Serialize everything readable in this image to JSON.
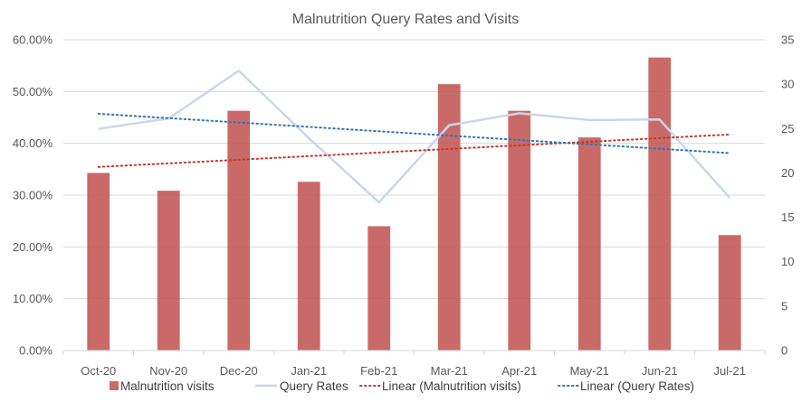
{
  "chart_data": {
    "type": "bar",
    "title": "Malnutrition Query Rates and Visits",
    "categories": [
      "Oct-20",
      "Nov-20",
      "Dec-20",
      "Jan-21",
      "Feb-21",
      "Mar-21",
      "Apr-21",
      "May-21",
      "Jun-21",
      "Jul-21"
    ],
    "series": [
      {
        "name": "Malnutrition visits",
        "type": "bar",
        "axis": "right",
        "values": [
          20,
          18,
          27,
          19,
          14,
          30,
          27,
          24,
          33,
          13
        ]
      },
      {
        "name": "Query Rates",
        "type": "line",
        "axis": "left",
        "values": [
          0.428,
          0.448,
          0.54,
          0.41,
          0.286,
          0.435,
          0.458,
          0.445,
          0.446,
          0.295
        ]
      },
      {
        "name": "Linear (Malnutrition visits)",
        "type": "trendline",
        "of": "Malnutrition visits",
        "style": "dotted"
      },
      {
        "name": "Linear (Query Rates)",
        "type": "trendline",
        "of": "Query Rates",
        "style": "dotted"
      }
    ],
    "y_left": {
      "min": 0,
      "max": 0.6,
      "step": 0.1,
      "format": "percent"
    },
    "y_right": {
      "min": 0,
      "max": 35,
      "step": 5
    },
    "y_left_ticks": [
      "0.00%",
      "10.00%",
      "20.00%",
      "30.00%",
      "40.00%",
      "50.00%",
      "60.00%"
    ],
    "y_right_ticks": [
      "0",
      "5",
      "10",
      "15",
      "20",
      "25",
      "30",
      "35"
    ],
    "legend_position": "bottom",
    "grid": true,
    "colors": {
      "bar": "#C0504D",
      "query_line": "#C9D7EA",
      "trend_visits": "#C0392B",
      "trend_query": "#2E75B6",
      "grid": "#D9D9D9",
      "text": "#595959"
    }
  }
}
